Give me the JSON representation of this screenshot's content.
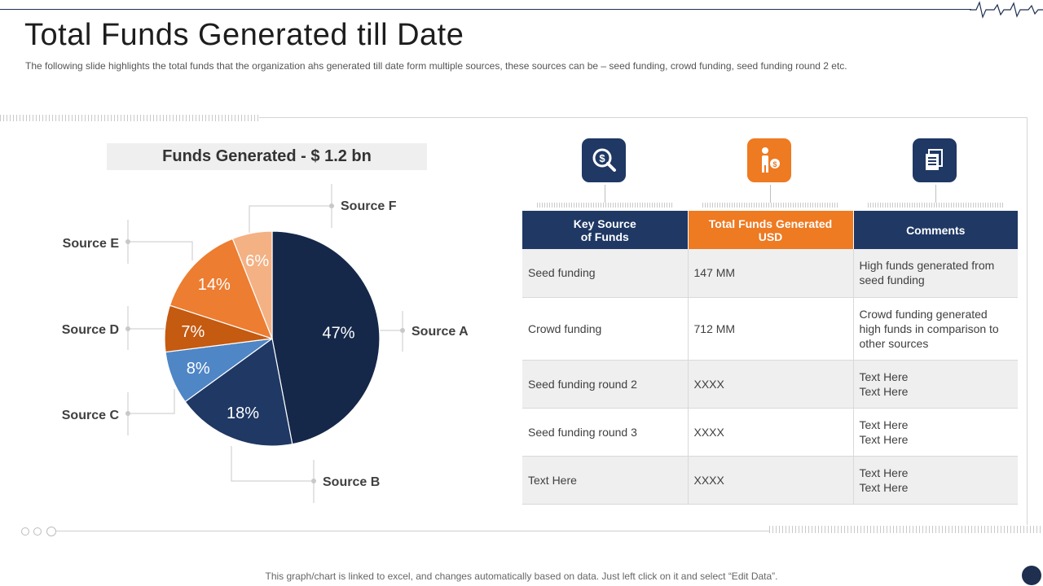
{
  "slide": {
    "title": "Total Funds Generated till Date",
    "subtitle": "The following  slide highlights the total funds that the organization  ahs generated  till date form  multiple sources,  these sources can be – seed funding,  crowd funding,  seed funding  round 2 etc.",
    "footer_note": "This graph/chart is linked to excel,  and changes automatically based on data. Just left click on it and select “Edit Data”."
  },
  "chart_data": {
    "type": "pie",
    "title": "Funds Generated - $ 1.2 bn",
    "categories": [
      "Source A",
      "Source B",
      "Source C",
      "Source D",
      "Source E",
      "Source F"
    ],
    "values": [
      47,
      18,
      8,
      7,
      14,
      6
    ],
    "value_labels": [
      "47%",
      "18%",
      "8%",
      "7%",
      "14%",
      "6%"
    ],
    "colors": [
      "#15284a",
      "#1f3864",
      "#4f86c6",
      "#c55a11",
      "#ed7d31",
      "#f4b183"
    ]
  },
  "table": {
    "icons": [
      "search-dollar-icon",
      "person-money-icon",
      "document-list-icon"
    ],
    "icon_colors": [
      "#1f3864",
      "#ee7a22",
      "#1f3864"
    ],
    "headers": [
      "Key Source\nof Funds",
      "Total Funds Generated\nUSD",
      "Comments"
    ],
    "rows": [
      {
        "source": "Seed funding",
        "amount": "147 MM",
        "comment": "High funds generated from seed funding"
      },
      {
        "source": "Crowd funding",
        "amount": "712 MM",
        "comment": "Crowd funding  generated high funds in comparison to other sources"
      },
      {
        "source": "Seed funding round 2",
        "amount": "XXXX",
        "comment": "Text Here\nText Here"
      },
      {
        "source": "Seed funding round 3",
        "amount": "XXXX",
        "comment": "Text Here\nText Here"
      },
      {
        "source": "Text Here",
        "amount": "XXXX",
        "comment": "Text Here\nText Here"
      }
    ]
  }
}
